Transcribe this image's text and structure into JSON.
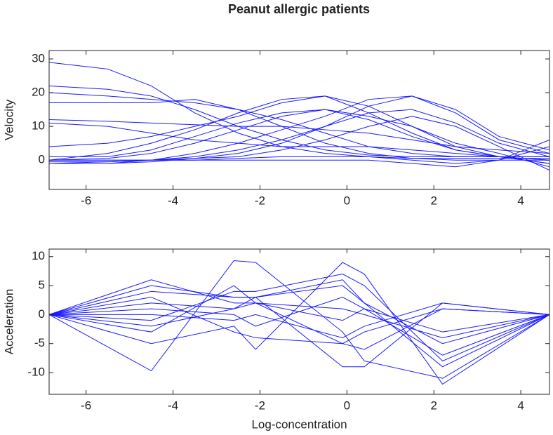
{
  "chart_data": [
    {
      "type": "line",
      "title": "Peanut allergic patients",
      "ylabel": "Velocity",
      "color": "#1a1aff",
      "xlim": [
        -6.85,
        4.66
      ],
      "ylim": [
        -8.7,
        32.5
      ],
      "xticks": [
        -6,
        -4,
        -2,
        0,
        2,
        4
      ],
      "yticks": [
        0,
        10,
        20,
        30
      ],
      "x": [
        -6.85,
        -5.5,
        -4.5,
        -3.5,
        -2.5,
        -1.5,
        -0.5,
        0.5,
        1.5,
        2.5,
        3.5,
        4.66
      ],
      "series": [
        {
          "values": [
            29,
            27,
            22,
            14,
            8,
            4,
            2,
            1,
            0.5,
            0.5,
            0.5,
            0.5
          ]
        },
        {
          "values": [
            22,
            21,
            19,
            15,
            10,
            6,
            3,
            1.5,
            1,
            1,
            1,
            1
          ]
        },
        {
          "values": [
            20,
            19,
            18,
            17,
            15,
            12,
            8,
            4,
            2,
            1,
            1,
            1
          ]
        },
        {
          "values": [
            17,
            17,
            17,
            18,
            15,
            10,
            5,
            2,
            0.5,
            0,
            0,
            0
          ]
        },
        {
          "values": [
            12,
            11.5,
            11,
            10.5,
            10,
            10,
            9,
            8,
            6,
            4,
            3,
            2
          ]
        },
        {
          "values": [
            11,
            10,
            8,
            6,
            5,
            4,
            4,
            4,
            3,
            2,
            1,
            0
          ]
        },
        {
          "values": [
            4,
            5,
            7,
            10,
            13,
            17,
            19,
            16,
            10,
            4,
            1,
            -1
          ]
        },
        {
          "values": [
            0,
            2,
            5,
            9,
            14,
            18,
            19,
            14,
            8,
            3,
            1,
            0
          ]
        },
        {
          "values": [
            0,
            0.5,
            2,
            5,
            9,
            13,
            15,
            12,
            7,
            3,
            1,
            -1
          ]
        },
        {
          "values": [
            -1,
            -1,
            0,
            2,
            5,
            9,
            13,
            18,
            19,
            14,
            6,
            2
          ]
        },
        {
          "values": [
            -1,
            -1,
            -0.5,
            0.5,
            2,
            5,
            10,
            16,
            19,
            15,
            7,
            3
          ]
        },
        {
          "values": [
            -1,
            -0.5,
            0,
            1,
            3,
            6,
            10,
            14,
            15,
            11,
            5,
            1
          ]
        },
        {
          "values": [
            -0.5,
            -0.5,
            0,
            0.5,
            1,
            3,
            6,
            10,
            13,
            10,
            4,
            -3
          ]
        },
        {
          "values": [
            0,
            0,
            0,
            0,
            0.5,
            1,
            1,
            1,
            0,
            -1,
            0,
            6
          ]
        },
        {
          "values": [
            0,
            0,
            0,
            0,
            0,
            0,
            0,
            0,
            -1,
            -2,
            0,
            4
          ]
        },
        {
          "values": [
            1,
            1,
            3,
            7,
            11,
            14,
            15,
            13,
            10,
            5,
            2,
            -2
          ]
        }
      ]
    },
    {
      "type": "line",
      "xlabel": "Log-concentration",
      "ylabel": "Acceleration",
      "color": "#1a1aff",
      "xlim": [
        -6.85,
        4.66
      ],
      "ylim": [
        -13.75,
        11.3
      ],
      "xticks": [
        -6,
        -4,
        -2,
        0,
        2,
        4
      ],
      "yticks": [
        -10,
        -5,
        0,
        5,
        10
      ],
      "x": [
        -6.85,
        -4.5,
        -2.6,
        -2.1,
        -0.1,
        0.4,
        2.2,
        4.66
      ],
      "series": [
        {
          "values": [
            0,
            6,
            2,
            2,
            1,
            0,
            -4,
            0
          ]
        },
        {
          "values": [
            0,
            -9.7,
            9.3,
            9,
            -3,
            -8,
            -11,
            0
          ]
        },
        {
          "values": [
            0,
            -5,
            -2,
            -6,
            9,
            7,
            -12,
            0
          ]
        },
        {
          "values": [
            0,
            4,
            3,
            3,
            5,
            2,
            -5,
            0
          ]
        },
        {
          "values": [
            0,
            2,
            1,
            3,
            -9,
            -9,
            2,
            0
          ]
        },
        {
          "values": [
            0,
            -1,
            4,
            4,
            7,
            5,
            -8,
            0
          ]
        },
        {
          "values": [
            0,
            3,
            -3,
            -4,
            -5,
            -3,
            1,
            0
          ]
        },
        {
          "values": [
            0,
            -3,
            5,
            2,
            -1,
            1,
            -7,
            0
          ]
        },
        {
          "values": [
            0,
            1,
            0,
            -2,
            3,
            1,
            -3,
            0
          ]
        },
        {
          "values": [
            0,
            0,
            -1,
            0,
            -4,
            -2,
            2,
            0
          ]
        },
        {
          "values": [
            0,
            5,
            3,
            3,
            6,
            2,
            -9,
            0
          ]
        },
        {
          "values": [
            0,
            -2,
            1,
            2,
            -5,
            -6,
            1,
            0
          ]
        }
      ]
    }
  ]
}
